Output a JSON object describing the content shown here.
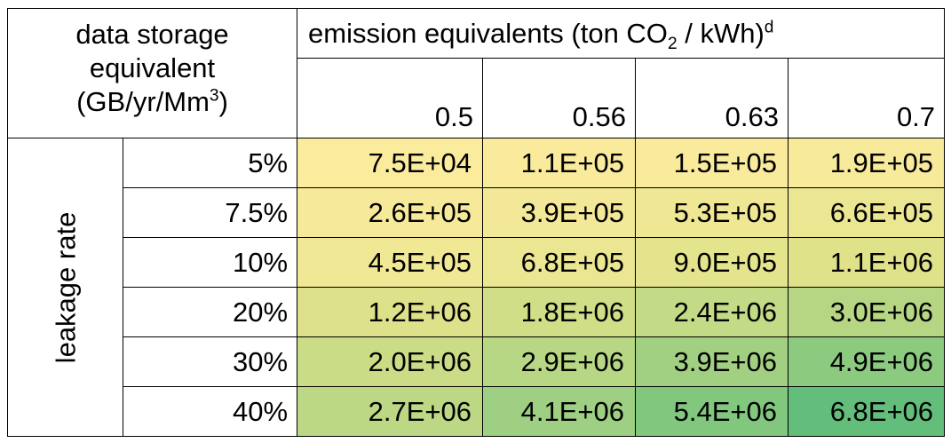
{
  "chart_data": {
    "type": "table",
    "corner_label": {
      "line1": "data storage",
      "line2": "equivalent",
      "line3_pre": "(GB/yr/Mm",
      "line3_sup": "3",
      "line3_post": ")"
    },
    "col_header": {
      "pre": "emission equivalents (ton CO",
      "sub": "2",
      "mid": " / kWh)",
      "sup": "d"
    },
    "row_header": "leakage rate",
    "columns": [
      "0.5",
      "0.56",
      "0.63",
      "0.7"
    ],
    "rows": [
      {
        "label": "5%",
        "values": [
          "7.5E+04",
          "1.1E+05",
          "1.5E+05",
          "1.9E+05"
        ]
      },
      {
        "label": "7.5%",
        "values": [
          "2.6E+05",
          "3.9E+05",
          "5.3E+05",
          "6.6E+05"
        ]
      },
      {
        "label": "10%",
        "values": [
          "4.5E+05",
          "6.8E+05",
          "9.0E+05",
          "1.1E+06"
        ]
      },
      {
        "label": "20%",
        "values": [
          "1.2E+06",
          "1.8E+06",
          "2.4E+06",
          "3.0E+06"
        ]
      },
      {
        "label": "30%",
        "values": [
          "2.0E+06",
          "2.9E+06",
          "3.9E+06",
          "4.9E+06"
        ]
      },
      {
        "label": "40%",
        "values": [
          "2.7E+06",
          "4.1E+06",
          "5.4E+06",
          "6.8E+06"
        ]
      }
    ],
    "color_scale": {
      "low": "#fbeb9d",
      "mid": "#dfe289",
      "high": "#63be7b"
    }
  }
}
